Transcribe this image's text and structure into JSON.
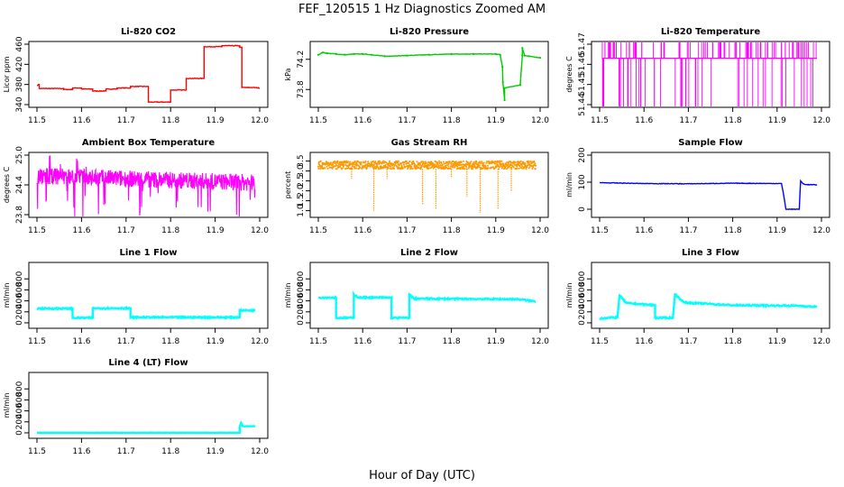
{
  "figure": {
    "title": "FEF_120515  1 Hz Diagnostics Zoomed AM",
    "xlabel": "Hour of Day (UTC)"
  },
  "chart_data": [
    {
      "type": "line",
      "title": "Li-820 CO2",
      "ylabel": "Licor ppm",
      "color": "#ff0000",
      "xlim": [
        11.5,
        12.0
      ],
      "ylim": [
        340,
        460
      ],
      "yticks": [
        "340",
        "380",
        "420",
        "460"
      ],
      "xticks": [
        "11.5",
        "11.6",
        "11.7",
        "11.8",
        "11.9",
        "12.0"
      ],
      "series": [
        {
          "x": [
            11.5,
            11.505,
            11.505,
            11.56,
            11.56,
            11.58,
            11.58,
            11.6,
            11.6,
            11.625,
            11.625,
            11.655,
            11.655,
            11.68,
            11.68,
            11.71,
            11.71,
            11.75,
            11.75,
            11.8,
            11.8,
            11.835,
            11.835,
            11.875,
            11.875,
            11.915,
            11.915,
            11.955,
            11.955,
            11.96,
            11.96,
            11.985,
            12.0
          ],
          "y": [
            378,
            380,
            372,
            372,
            370,
            370,
            373,
            373,
            371,
            371,
            367,
            367,
            371,
            371,
            373,
            373,
            376,
            376,
            345,
            345,
            369,
            369,
            392,
            392,
            455,
            455,
            457,
            457,
            454,
            454,
            374,
            374,
            373
          ]
        }
      ]
    },
    {
      "type": "line",
      "title": "Li-820 Pressure",
      "ylabel": "kPa",
      "color": "#00cc00",
      "xlim": [
        11.5,
        12.0
      ],
      "ylim": [
        73.6,
        74.4
      ],
      "yticks": [
        "73.8",
        "74.2"
      ],
      "xticks": [
        "11.5",
        "11.6",
        "11.7",
        "11.8",
        "11.9",
        "12.0"
      ],
      "series": [
        {
          "x": [
            11.5,
            11.51,
            11.52,
            11.54,
            11.56,
            11.58,
            11.6,
            11.62,
            11.65,
            11.7,
            11.75,
            11.8,
            11.85,
            11.9,
            11.91,
            11.915,
            11.916,
            11.92,
            11.92,
            11.955,
            11.955,
            11.96,
            11.96,
            11.965,
            11.975,
            12.0
          ],
          "y": [
            74.26,
            74.29,
            74.28,
            74.27,
            74.26,
            74.27,
            74.27,
            74.26,
            74.24,
            74.25,
            74.26,
            74.27,
            74.27,
            74.27,
            74.26,
            74.1,
            73.9,
            73.66,
            73.82,
            73.86,
            73.86,
            74.25,
            74.35,
            74.25,
            74.24,
            74.22
          ]
        }
      ]
    },
    {
      "type": "line",
      "title": "Li-820 Temperature",
      "ylabel": "degrees C",
      "color": "#ff00ff",
      "xlim": [
        11.5,
        12.0
      ],
      "ylim": [
        51.44,
        51.47
      ],
      "yticks": [
        "51.44",
        "51.45",
        "51.46",
        "51.47"
      ],
      "xticks": [
        "11.5",
        "11.6",
        "11.7",
        "11.8",
        "11.9",
        "12.0"
      ],
      "series": [
        {
          "name": "",
          "x": [],
          "y": []
        }
      ]
    },
    {
      "type": "line",
      "title": "Ambient Box Temperature",
      "ylabel": "degrees C",
      "color": "#ff00ff",
      "xlim": [
        11.5,
        12.0
      ],
      "ylim": [
        23.8,
        25.0
      ],
      "yticks": [
        "23.8",
        "24.4",
        "25.0"
      ],
      "xticks": [
        "11.5",
        "11.6",
        "11.7",
        "11.8",
        "11.9",
        "12.0"
      ],
      "series": [
        {
          "x": [
            11.5,
            11.6,
            11.7,
            11.8,
            11.9,
            12.0
          ],
          "y": [
            24.58,
            24.56,
            24.52,
            24.5,
            24.47,
            24.44
          ]
        }
      ]
    },
    {
      "type": "scatter",
      "title": "Gas Stream RH",
      "ylabel": "percent",
      "color": "#ff9900",
      "xlim": [
        11.5,
        12.0
      ],
      "ylim": [
        0.8,
        3.8
      ],
      "yticks": [
        "1.0",
        "1.5",
        "2.0",
        "2.5",
        "3.0",
        "3.5"
      ],
      "xticks": [
        "11.5",
        "11.6",
        "11.7",
        "11.8",
        "11.9",
        "12.0"
      ],
      "series": [
        {
          "x": [
            11.5,
            11.6,
            11.7,
            11.8,
            11.9,
            12.0
          ],
          "y": [
            3.3,
            3.3,
            3.3,
            3.3,
            3.3,
            3.3
          ]
        }
      ]
    },
    {
      "type": "line",
      "title": "Sample Flow",
      "ylabel": "ml/min",
      "color": "#0000ff",
      "xlim": [
        11.5,
        12.0
      ],
      "ylim": [
        -20,
        200
      ],
      "yticks": [
        "0",
        "100",
        "200"
      ],
      "xticks": [
        "11.5",
        "11.6",
        "11.7",
        "11.8",
        "11.9",
        "12.0"
      ],
      "series": [
        {
          "x": [
            11.5,
            11.6,
            11.7,
            11.8,
            11.91,
            11.915,
            11.92,
            11.95,
            11.953,
            11.958,
            11.965,
            11.99
          ],
          "y": [
            98,
            95,
            94,
            96,
            95,
            50,
            0,
            0,
            105,
            95,
            91,
            90
          ]
        }
      ]
    },
    {
      "type": "line",
      "title": "Line 1 Flow",
      "ylabel": "ml/min",
      "color": "#00ffff",
      "xlim": [
        11.5,
        12.0
      ],
      "ylim": [
        -50,
        1050
      ],
      "yticks": [
        "0",
        "200",
        "400",
        "600",
        "800"
      ],
      "xticks": [
        "11.5",
        "11.6",
        "11.7",
        "11.8",
        "11.9",
        "12.0"
      ],
      "series": [
        {
          "x": [
            11.5,
            11.58,
            11.58,
            11.625,
            11.625,
            11.71,
            11.71,
            11.955,
            11.955,
            11.99
          ],
          "y": [
            260,
            260,
            90,
            90,
            265,
            265,
            100,
            100,
            225,
            225
          ]
        }
      ]
    },
    {
      "type": "line",
      "title": "Line 2 Flow",
      "ylabel": "ml/min",
      "color": "#00ffff",
      "xlim": [
        11.5,
        12.0
      ],
      "ylim": [
        -50,
        1050
      ],
      "yticks": [
        "0",
        "200",
        "400",
        "600",
        "800"
      ],
      "xticks": [
        "11.5",
        "11.6",
        "11.7",
        "11.8",
        "11.9",
        "12.0"
      ],
      "series": [
        {
          "x": [
            11.5,
            11.54,
            11.54,
            11.58,
            11.58,
            11.59,
            11.665,
            11.665,
            11.705,
            11.705,
            11.715,
            11.95,
            11.99
          ],
          "y": [
            460,
            460,
            90,
            90,
            520,
            460,
            460,
            90,
            90,
            520,
            440,
            430,
            390
          ]
        }
      ]
    },
    {
      "type": "line",
      "title": "Line 3 Flow",
      "ylabel": "ml/min",
      "color": "#00ffff",
      "xlim": [
        11.5,
        12.0
      ],
      "ylim": [
        -50,
        1050
      ],
      "yticks": [
        "0",
        "200",
        "400",
        "600",
        "800"
      ],
      "xticks": [
        "11.5",
        "11.6",
        "11.7",
        "11.8",
        "11.9",
        "12.0"
      ],
      "series": [
        {
          "x": [
            11.5,
            11.54,
            11.545,
            11.56,
            11.625,
            11.625,
            11.665,
            11.67,
            11.69,
            11.8,
            11.95,
            11.99
          ],
          "y": [
            80,
            100,
            500,
            360,
            320,
            90,
            90,
            520,
            370,
            320,
            310,
            290
          ]
        }
      ]
    },
    {
      "type": "line",
      "title": "Line 4 (LT) Flow",
      "ylabel": "ml/min",
      "color": "#00ffff",
      "xlim": [
        11.5,
        12.0
      ],
      "ylim": [
        -50,
        1050
      ],
      "yticks": [
        "0",
        "200",
        "400",
        "600",
        "800"
      ],
      "xticks": [
        "11.5",
        "11.6",
        "11.7",
        "11.8",
        "11.9",
        "12.0"
      ],
      "series": [
        {
          "x": [
            11.5,
            11.955,
            11.955,
            11.958,
            11.962,
            11.99
          ],
          "y": [
            2,
            2,
            100,
            180,
            120,
            120
          ]
        }
      ]
    }
  ]
}
